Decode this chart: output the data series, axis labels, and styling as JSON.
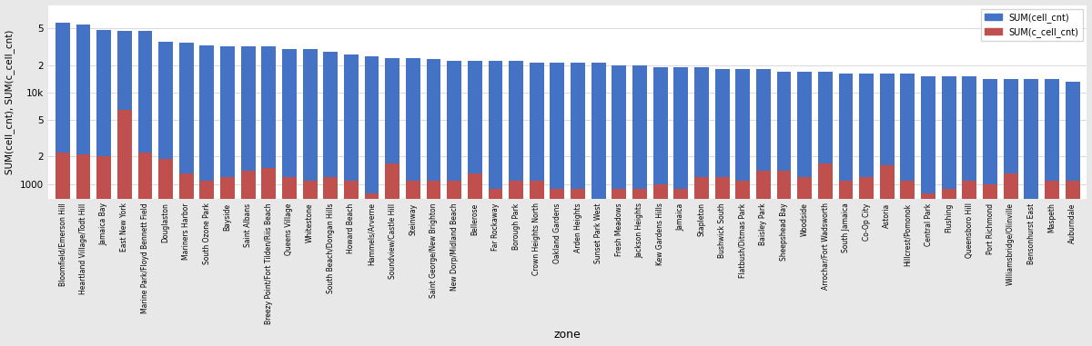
{
  "zones": [
    "Bloomfield/Emerson Hill",
    "Heartland Village/Todt Hill",
    "Jamaica Bay",
    "East New York",
    "Marine Park/Floyd Bennett Field",
    "Douglaston",
    "Mariners Harbor",
    "South Ozone Park",
    "Bayside",
    "Saint Albans",
    "Breezy Point/Fort Tilden/Riis Beach",
    "Queens Village",
    "Whitestone",
    "South Beach/Dongan Hills",
    "Howard Beach",
    "Hammels/Arverne",
    "Soundview/Castle Hill",
    "Steinway",
    "Saint George/New Brighton",
    "New Dorp/Midland Beach",
    "Bellerose",
    "Far Rockaway",
    "Borough Park",
    "Crown Heights North",
    "Oakland Gardens",
    "Arden Heights",
    "Sunset Park West",
    "Fresh Meadows",
    "Jackson Heights",
    "Kew Gardens Hills",
    "Jamaica",
    "Stapleton",
    "Bushwick South",
    "Flatbush/Ditmas Park",
    "Baisley Park",
    "Sheepshead Bay",
    "Woodside",
    "Arrochar/Fort Wadsworth",
    "South Jamaica",
    "Co-Op City",
    "Astoria",
    "Hillcrest/Pomonok",
    "Central Park",
    "Flushing",
    "Queensboro Hill",
    "Port Richmond",
    "Williamsbridge/Olinville",
    "Bensonhurst East",
    "Maspeth",
    "Auburndale"
  ],
  "cell_cnt": [
    58000,
    55000,
    48000,
    47000,
    47000,
    36000,
    35000,
    33000,
    32000,
    32000,
    32000,
    30000,
    30000,
    28000,
    26000,
    25000,
    24000,
    24000,
    23000,
    22000,
    22000,
    22000,
    22000,
    21000,
    21000,
    21000,
    21000,
    20000,
    20000,
    19000,
    19000,
    19000,
    18000,
    18000,
    18000,
    17000,
    17000,
    17000,
    16000,
    16000,
    16000,
    16000,
    15000,
    15000,
    15000,
    14000,
    14000,
    14000,
    14000,
    13000
  ],
  "c_cell_cnt": [
    2200,
    2100,
    2000,
    6500,
    2200,
    1900,
    1300,
    1100,
    1200,
    1400,
    1500,
    1200,
    1100,
    1200,
    1100,
    800,
    1700,
    1100,
    1100,
    1100,
    1300,
    900,
    1100,
    1100,
    900,
    900,
    600,
    900,
    900,
    1000,
    900,
    1200,
    1200,
    1100,
    1400,
    1400,
    1200,
    1700,
    1100,
    1200,
    1600,
    1100,
    800,
    900,
    1100,
    1000,
    1300,
    700,
    1100,
    1100
  ],
  "bar_width": 0.7,
  "blue_color": "#4472C4",
  "red_color": "#C0504D",
  "ylabel": "SUM(cell_cnt), SUM(c_cell_cnt)",
  "xlabel": "zone",
  "legend_labels": [
    "SUM(cell_cnt)",
    "SUM(c_cell_cnt)"
  ],
  "background_color": "#E8E8E8",
  "plot_background": "#FFFFFF",
  "yticks": [
    1000,
    2000,
    5000,
    10000,
    20000,
    50000
  ],
  "ytick_labels": [
    "1000",
    "2",
    "5",
    "10k",
    "2",
    "5"
  ],
  "ylim_min": 700,
  "ylim_max": 90000
}
